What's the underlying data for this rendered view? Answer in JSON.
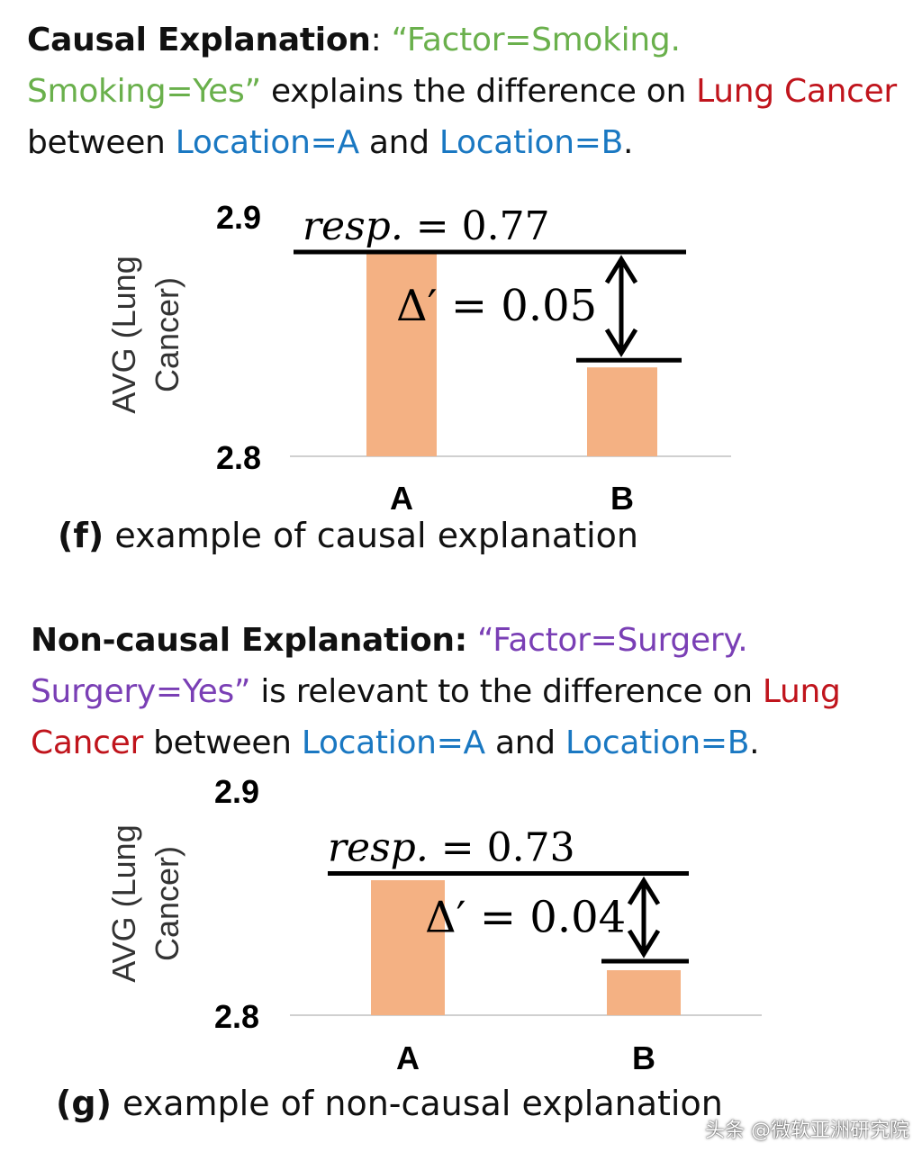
{
  "colors": {
    "bar": "#f4b183",
    "axis_line": "#d0d0d0",
    "green_text": "#6ab04c",
    "purple_text": "#7a3fb5",
    "red_text": "#c0141c",
    "blue_text": "#1a78c2"
  },
  "panel_f": {
    "heading": "Causal Explanation",
    "colon": ": ",
    "quote_part1": "“Factor=Smoking.",
    "quote_part2": "Smoking=Yes”",
    "middle_text": " explains the difference on ",
    "measure": "Lung Cancer",
    "between_text": " between ",
    "location_a": "Location=A",
    "and_text": " and ",
    "location_b": "Location=B",
    "period": ".",
    "caption_label": "(f)",
    "caption_text": " example of causal explanation"
  },
  "panel_g": {
    "heading": "Non-causal Explanation:",
    "quote_part1": " “Factor=Surgery.",
    "quote_part2": "Surgery=Yes”",
    "middle_text": " is relevant to the difference on ",
    "measure": "Lung Cancer",
    "between_text": " between ",
    "location_a": "Location=A",
    "and_text": " and ",
    "location_b": "Location=B",
    "period": ".",
    "caption_label": "(g)",
    "caption_text": " example of non-causal explanation"
  },
  "chart_data": [
    {
      "type": "bar",
      "title": "",
      "xlabel": "",
      "ylabel": "AVG (Lung Cancer)",
      "ylabel_line1": "AVG (Lung",
      "ylabel_line2": "Cancer)",
      "categories": [
        "A",
        "B"
      ],
      "values": [
        2.885,
        2.837
      ],
      "ylim": [
        2.8,
        2.9
      ],
      "ytick_labels": [
        "2.9",
        "2.8"
      ],
      "ref_line_upper": 2.885,
      "ref_line_lower": 2.84,
      "resp_label": "resp. = 0.77",
      "delta_label": "Δ′ = 0.05"
    },
    {
      "type": "bar",
      "title": "",
      "xlabel": "",
      "ylabel": "AVG (Lung Cancer)",
      "ylabel_line1": "AVG (Lung",
      "ylabel_line2": "Cancer)",
      "categories": [
        "A",
        "B"
      ],
      "values": [
        2.86,
        2.82
      ],
      "ylim": [
        2.8,
        2.9
      ],
      "ytick_labels": [
        "2.9",
        "2.8"
      ],
      "ref_line_upper": 2.863,
      "ref_line_lower": 2.824,
      "resp_label": "resp. = 0.73",
      "delta_label": "Δ′ = 0.04"
    }
  ],
  "watermark": "头条 @微软亚洲研究院"
}
